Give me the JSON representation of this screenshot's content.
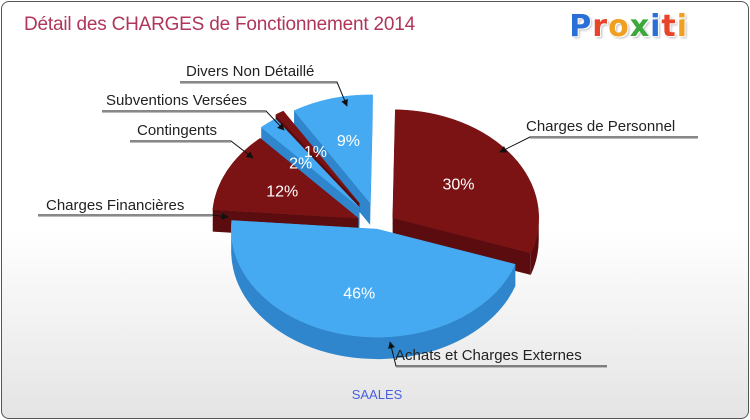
{
  "title": "Détail des CHARGES de Fonctionnement 2014",
  "logo": {
    "letters": [
      "P",
      "r",
      "o",
      "x",
      "i",
      "t",
      "i"
    ],
    "colors": [
      "#2a6fd6",
      "#e8442a",
      "#f0a020",
      "#3aa83a",
      "#2a6fd6",
      "#e8442a",
      "#f0a020"
    ]
  },
  "commune": "SAALES",
  "colors": {
    "dark": "#7b1214",
    "dark_side": "#5a0c0e",
    "light": "#45aaf2",
    "light_side": "#2f86cc",
    "label": "#222222",
    "pct": "#ffffff"
  },
  "chart_data": {
    "type": "pie",
    "title": "Détail des CHARGES de Fonctionnement 2014",
    "subtitle": "SAALES",
    "slices": [
      {
        "label": "Charges de Personnel",
        "value": 30,
        "pct_label": "30%",
        "color": "dark"
      },
      {
        "label": "Achats et Charges Externes",
        "value": 46,
        "pct_label": "46%",
        "color": "light"
      },
      {
        "label": "Charges Financières",
        "value": 12,
        "pct_label": "12%",
        "color": "dark"
      },
      {
        "label": "Contingents",
        "value": 2,
        "pct_label": "2%",
        "color": "light"
      },
      {
        "label": "Subventions Versées",
        "value": 1,
        "pct_label": "1%",
        "color": "dark"
      },
      {
        "label": "Divers Non Détaillé",
        "value": 9,
        "pct_label": "9%",
        "color": "light"
      }
    ]
  }
}
